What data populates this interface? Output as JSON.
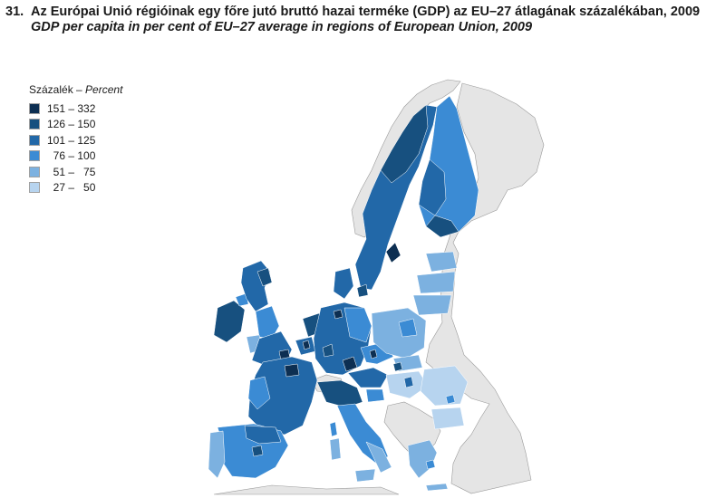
{
  "title": {
    "number": "31.",
    "hu": "Az Európai Unió régióinak egy főre jutó bruttó hazai terméke (GDP) az EU–27 átlagának százalékában, 2009",
    "en": "GDP per capita in per cent of EU–27 average in regions of European Union, 2009"
  },
  "legend": {
    "title_hu": "Százalék – ",
    "title_en": "Percent",
    "classes": [
      {
        "label": "151 – 332",
        "color": "#0d2f52"
      },
      {
        "label": "126 – 150",
        "color": "#17507f"
      },
      {
        "label": "101 – 125",
        "color": "#2268a8"
      },
      {
        "label": "  76 – 100",
        "color": "#3b8bd4"
      },
      {
        "label": "  51 –   75",
        "color": "#7cb1e0"
      },
      {
        "label": "  27 –   50",
        "color": "#b7d4ef"
      }
    ]
  },
  "colors": {
    "non_eu": "#e5e5e5",
    "border": "#ffffff",
    "country_edge": "#8a8a8a"
  }
}
